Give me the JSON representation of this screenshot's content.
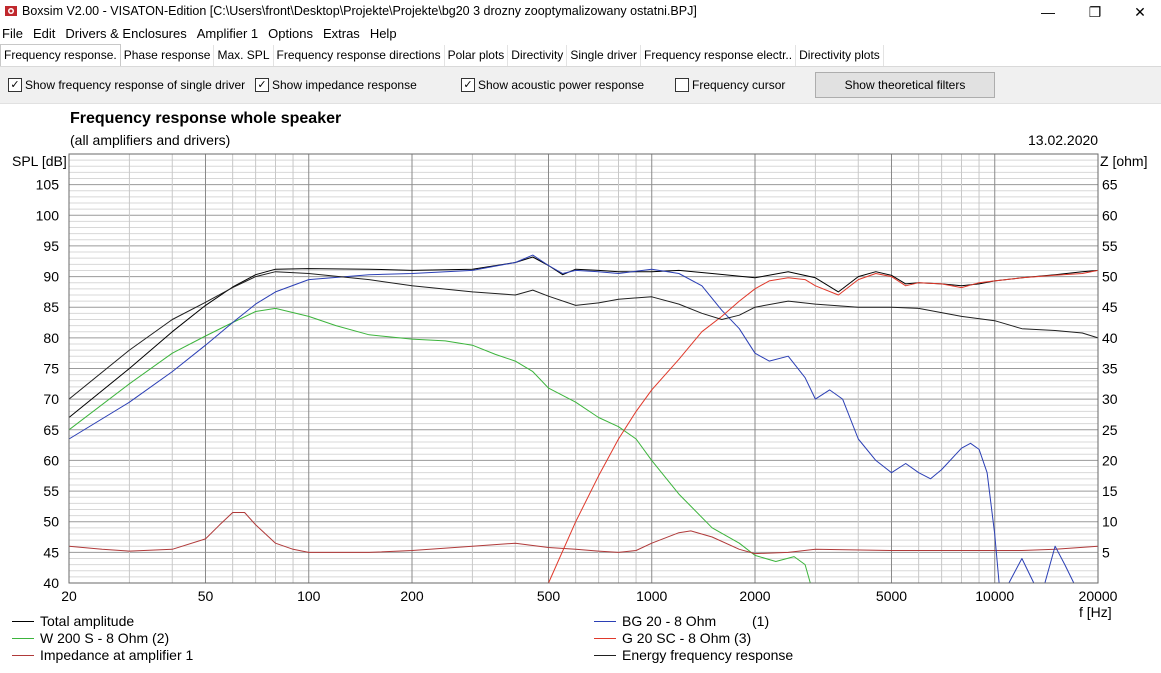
{
  "window": {
    "title": "Boxsim V2.00 - VISATON-Edition [C:\\Users\\front\\Desktop\\Projekte\\Projekte\\bg20 3 drozny zooptymalizowany ostatni.BPJ]",
    "minimize": "—",
    "maximize": "❐",
    "close": "✕"
  },
  "menu": [
    "File",
    "Edit",
    "Drivers & Enclosures",
    "Amplifier 1",
    "Options",
    "Extras",
    "Help"
  ],
  "tabs": [
    "Frequency response.",
    "Phase response",
    "Max. SPL",
    "Frequency response directions",
    "Polar plots",
    "Directivity",
    "Single driver",
    "Frequency response electr..",
    "Directivity plots"
  ],
  "options": {
    "single_driver": {
      "label": "Show frequency response of single driver",
      "checked": true,
      "mark": "✓"
    },
    "impedance": {
      "label": "Show impedance response",
      "checked": true,
      "mark": "✓"
    },
    "acoustic_power": {
      "label": "Show acoustic power response",
      "checked": true,
      "mark": "✓"
    },
    "freq_cursor": {
      "label": "Frequency cursor",
      "checked": false,
      "mark": ""
    },
    "theory_button": "Show theoretical filters"
  },
  "header": {
    "title": "Frequency response whole speaker",
    "subtitle": "(all amplifiers and drivers)",
    "date": "13.02.2020"
  },
  "chart_data": {
    "type": "line",
    "x_scale": "log",
    "xlim": [
      20,
      20000
    ],
    "ylim": [
      40,
      110
    ],
    "y2lim": [
      0,
      70
    ],
    "ylabel": "SPL [dB]",
    "y2label": "Z [ohm]",
    "xlabel": "f [Hz]",
    "grid": true,
    "x_ticks": [
      20,
      50,
      100,
      200,
      500,
      1000,
      2000,
      5000,
      10000,
      20000
    ],
    "x_tick_labels": [
      "20",
      "50",
      "100",
      "200",
      "500",
      "1000",
      "2000",
      "5000",
      "10000",
      "20000"
    ],
    "y_ticks": [
      40,
      45,
      50,
      55,
      60,
      65,
      70,
      75,
      80,
      85,
      90,
      95,
      100,
      105
    ],
    "y2_ticks": [
      0,
      5,
      10,
      15,
      20,
      25,
      30,
      35,
      40,
      45,
      50,
      55,
      60,
      65
    ],
    "y2_tick_labels": [
      "",
      "5",
      "10",
      "15",
      "20",
      "25",
      "30",
      "35",
      "40",
      "45",
      "50",
      "55",
      "60",
      "65"
    ],
    "series": [
      {
        "name": "Total amplitude",
        "color": "#000000",
        "axis": "left",
        "points": [
          [
            20,
            67
          ],
          [
            30,
            75
          ],
          [
            40,
            81
          ],
          [
            50,
            85.3
          ],
          [
            60,
            88.3
          ],
          [
            70,
            90.3
          ],
          [
            80,
            91.2
          ],
          [
            100,
            91.3
          ],
          [
            150,
            91.2
          ],
          [
            200,
            91
          ],
          [
            300,
            91.2
          ],
          [
            400,
            92.3
          ],
          [
            450,
            93.2
          ],
          [
            500,
            91.8
          ],
          [
            550,
            90.3
          ],
          [
            600,
            91.2
          ],
          [
            700,
            91
          ],
          [
            800,
            90.8
          ],
          [
            1000,
            90.8
          ],
          [
            1200,
            91
          ],
          [
            1500,
            90.5
          ],
          [
            2000,
            89.8
          ],
          [
            2500,
            90.8
          ],
          [
            3000,
            89.8
          ],
          [
            3500,
            87.5
          ],
          [
            4000,
            90
          ],
          [
            4500,
            90.8
          ],
          [
            5000,
            90.2
          ],
          [
            5500,
            88.8
          ],
          [
            6000,
            89
          ],
          [
            7000,
            88.8
          ],
          [
            8000,
            88.5
          ],
          [
            9000,
            88.8
          ],
          [
            10000,
            89.3
          ],
          [
            12000,
            89.8
          ],
          [
            15000,
            90.3
          ],
          [
            18000,
            90.8
          ],
          [
            20000,
            91
          ]
        ]
      },
      {
        "name": "W 200 S - 8 Ohm (2)",
        "color": "#3cb43c",
        "axis": "left",
        "points": [
          [
            20,
            65
          ],
          [
            30,
            72.5
          ],
          [
            40,
            77.5
          ],
          [
            50,
            80.3
          ],
          [
            60,
            82.5
          ],
          [
            70,
            84.3
          ],
          [
            80,
            84.8
          ],
          [
            100,
            83.5
          ],
          [
            120,
            82
          ],
          [
            150,
            80.5
          ],
          [
            200,
            79.8
          ],
          [
            250,
            79.5
          ],
          [
            300,
            78.8
          ],
          [
            350,
            77.3
          ],
          [
            400,
            76.2
          ],
          [
            450,
            74.5
          ],
          [
            500,
            71.8
          ],
          [
            600,
            69.5
          ],
          [
            700,
            67
          ],
          [
            800,
            65.5
          ],
          [
            900,
            63.5
          ],
          [
            1000,
            60
          ],
          [
            1200,
            54.5
          ],
          [
            1500,
            49
          ],
          [
            1800,
            46.5
          ],
          [
            2000,
            44.5
          ],
          [
            2300,
            43.5
          ],
          [
            2600,
            44.3
          ],
          [
            2800,
            43
          ],
          [
            2900,
            40
          ]
        ]
      },
      {
        "name": "Impedance at amplifier 1",
        "color": "#b03a3a",
        "axis": "right",
        "points": [
          [
            20,
            6
          ],
          [
            25,
            5.5
          ],
          [
            30,
            5.2
          ],
          [
            40,
            5.5
          ],
          [
            50,
            7.2
          ],
          [
            55,
            9.5
          ],
          [
            60,
            11.5
          ],
          [
            65,
            11.5
          ],
          [
            70,
            9.5
          ],
          [
            80,
            6.5
          ],
          [
            90,
            5.5
          ],
          [
            100,
            5
          ],
          [
            150,
            5
          ],
          [
            200,
            5.3
          ],
          [
            300,
            6
          ],
          [
            400,
            6.5
          ],
          [
            500,
            5.8
          ],
          [
            600,
            5.5
          ],
          [
            700,
            5.2
          ],
          [
            800,
            5
          ],
          [
            900,
            5.3
          ],
          [
            1000,
            6.5
          ],
          [
            1200,
            8.2
          ],
          [
            1300,
            8.5
          ],
          [
            1500,
            7.5
          ],
          [
            1800,
            5.5
          ],
          [
            2000,
            4.8
          ],
          [
            2500,
            5
          ],
          [
            3000,
            5.5
          ],
          [
            5000,
            5.3
          ],
          [
            8000,
            5.3
          ],
          [
            12000,
            5.3
          ],
          [
            15000,
            5.5
          ],
          [
            20000,
            6
          ]
        ]
      },
      {
        "name": "BG 20 - 8 Ohm",
        "color": "#2b3fb5",
        "axis": "left",
        "points": [
          [
            20,
            63.5
          ],
          [
            30,
            69.5
          ],
          [
            40,
            74.5
          ],
          [
            50,
            78.8
          ],
          [
            60,
            82.5
          ],
          [
            70,
            85.5
          ],
          [
            80,
            87.5
          ],
          [
            100,
            89.5
          ],
          [
            150,
            90.3
          ],
          [
            200,
            90.5
          ],
          [
            300,
            91
          ],
          [
            400,
            92.3
          ],
          [
            450,
            93.5
          ],
          [
            500,
            91.8
          ],
          [
            550,
            90.5
          ],
          [
            600,
            91
          ],
          [
            700,
            90.8
          ],
          [
            800,
            90.5
          ],
          [
            1000,
            91.2
          ],
          [
            1200,
            90.5
          ],
          [
            1400,
            88.5
          ],
          [
            1600,
            84.5
          ],
          [
            1800,
            81.5
          ],
          [
            2000,
            77.5
          ],
          [
            2200,
            76.2
          ],
          [
            2500,
            77
          ],
          [
            2800,
            73.5
          ],
          [
            3000,
            70
          ],
          [
            3300,
            71.5
          ],
          [
            3600,
            70
          ],
          [
            4000,
            63.5
          ],
          [
            4500,
            60
          ],
          [
            5000,
            58
          ],
          [
            5500,
            59.5
          ],
          [
            6000,
            58
          ],
          [
            6500,
            57
          ],
          [
            7000,
            58.5
          ],
          [
            8000,
            62
          ],
          [
            8500,
            62.8
          ],
          [
            9000,
            61.8
          ],
          [
            9500,
            58
          ],
          [
            10000,
            48
          ],
          [
            10300,
            40
          ],
          [
            11000,
            40
          ],
          [
            12000,
            44
          ],
          [
            13000,
            40
          ],
          [
            14000,
            40
          ],
          [
            15000,
            46
          ],
          [
            16000,
            43
          ],
          [
            17000,
            40
          ],
          [
            20000,
            40
          ]
        ]
      },
      {
        "name": "G 20 SC - 8 Ohm (3)",
        "color": "#e0392b",
        "axis": "left",
        "points": [
          [
            500,
            40
          ],
          [
            600,
            50
          ],
          [
            700,
            57.5
          ],
          [
            800,
            63.5
          ],
          [
            900,
            68
          ],
          [
            1000,
            71.5
          ],
          [
            1200,
            76.5
          ],
          [
            1400,
            81
          ],
          [
            1600,
            83.5
          ],
          [
            1800,
            86
          ],
          [
            2000,
            88
          ],
          [
            2200,
            89.3
          ],
          [
            2500,
            89.8
          ],
          [
            2800,
            89.5
          ],
          [
            3000,
            88.5
          ],
          [
            3500,
            87
          ],
          [
            4000,
            89.5
          ],
          [
            4500,
            90.5
          ],
          [
            5000,
            90
          ],
          [
            5500,
            88.5
          ],
          [
            6000,
            89
          ],
          [
            7000,
            88.8
          ],
          [
            8000,
            88.2
          ],
          [
            9000,
            89
          ],
          [
            10000,
            89.3
          ],
          [
            12000,
            89.8
          ],
          [
            15000,
            90.2
          ],
          [
            18000,
            90.5
          ],
          [
            20000,
            91
          ]
        ]
      },
      {
        "name": "Energy frequency response",
        "color": "#202020",
        "axis": "left",
        "points": [
          [
            20,
            70
          ],
          [
            30,
            78
          ],
          [
            40,
            83
          ],
          [
            50,
            85.8
          ],
          [
            60,
            88.2
          ],
          [
            70,
            90
          ],
          [
            80,
            90.8
          ],
          [
            100,
            90.5
          ],
          [
            150,
            89.5
          ],
          [
            200,
            88.5
          ],
          [
            300,
            87.5
          ],
          [
            400,
            87
          ],
          [
            450,
            87.8
          ],
          [
            500,
            86.8
          ],
          [
            600,
            85.3
          ],
          [
            700,
            85.7
          ],
          [
            800,
            86.3
          ],
          [
            1000,
            86.7
          ],
          [
            1200,
            85.5
          ],
          [
            1400,
            84
          ],
          [
            1600,
            83
          ],
          [
            1800,
            83.7
          ],
          [
            2000,
            85
          ],
          [
            2500,
            86
          ],
          [
            3000,
            85.5
          ],
          [
            4000,
            85
          ],
          [
            5000,
            85
          ],
          [
            6000,
            84.8
          ],
          [
            8000,
            83.5
          ],
          [
            10000,
            82.8
          ],
          [
            12000,
            81.5
          ],
          [
            15000,
            81.2
          ],
          [
            18000,
            80.8
          ],
          [
            20000,
            80
          ]
        ]
      }
    ],
    "legend": [
      {
        "label": "Total amplitude",
        "number": "",
        "color": "#000000"
      },
      {
        "label": "W 200 S - 8 Ohm (2)",
        "number": "",
        "color": "#3cb43c"
      },
      {
        "label": "Impedance at amplifier 1",
        "number": "",
        "color": "#b03a3a"
      },
      {
        "label": "BG 20 - 8 Ohm",
        "number": "(1)",
        "color": "#2b3fb5"
      },
      {
        "label": "G 20 SC - 8 Ohm (3)",
        "number": "",
        "color": "#e0392b"
      },
      {
        "label": "Energy frequency response",
        "number": "",
        "color": "#202020"
      }
    ]
  }
}
